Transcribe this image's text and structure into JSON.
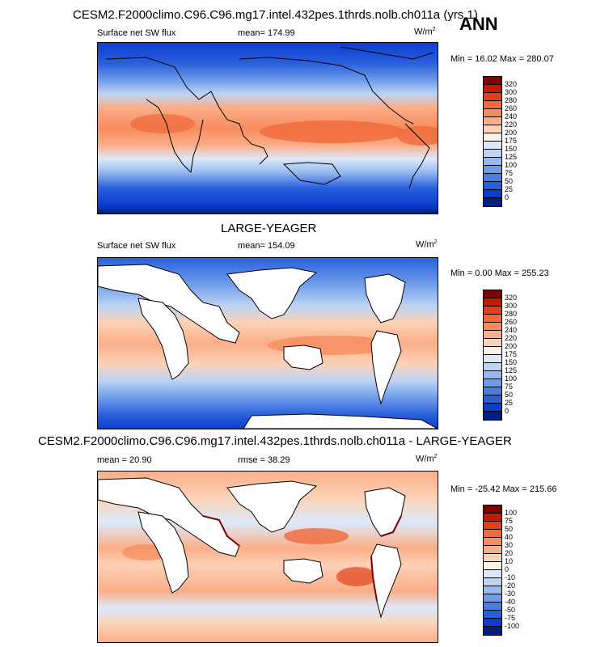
{
  "header": {
    "title": "CESM2.F2000climo.C96.C96.mg17.intel.432pes.1thrds.nolb.ch011a (yrs 1)",
    "season": "ANN"
  },
  "panels": [
    {
      "variable": "Surface net SW flux",
      "stat": "mean=  174.99",
      "units": "W/m",
      "units_sup": "2",
      "minmax": "Min =  16.02 Max = 280.07",
      "land_blank": false
    },
    {
      "subtitle": "LARGE-YEAGER",
      "variable": "Surface net SW flux",
      "stat": "mean=  154.09",
      "units": "W/m",
      "units_sup": "2",
      "minmax": "Min =  0.00 Max = 255.23",
      "land_blank": true
    },
    {
      "subtitle": "CESM2.F2000climo.C96.C96.mg17.intel.432pes.1thrds.nolb.ch011a - LARGE-YEAGER",
      "variable": "mean =  20.90",
      "stat": "rmse =  38.29",
      "units": "W/m",
      "units_sup": "2",
      "minmax": "Min = -25.42 Max = 215.66",
      "land_blank": true
    }
  ],
  "colorbars": {
    "abs_levels": [
      "320",
      "300",
      "280",
      "260",
      "240",
      "220",
      "200",
      "175",
      "150",
      "125",
      "100",
      "75",
      "50",
      "25",
      "0"
    ],
    "abs_colors": [
      "#800000",
      "#c01a00",
      "#e0411c",
      "#f06a3c",
      "#f78c5e",
      "#fbae88",
      "#fdd2b6",
      "#fdf0e4",
      "#dce9fa",
      "#bcd4f5",
      "#95b9f0",
      "#6e9cea",
      "#4a7de3",
      "#2a5fdc",
      "#0b3ed0",
      "#001e80"
    ],
    "diff_levels": [
      "100",
      "75",
      "50",
      "40",
      "30",
      "20",
      "10",
      "0",
      "-10",
      "-20",
      "-30",
      "-40",
      "-50",
      "-75",
      "-100"
    ],
    "diff_colors": [
      "#800000",
      "#c01a00",
      "#e0411c",
      "#f06a3c",
      "#f78c5e",
      "#fbae88",
      "#fdd2b6",
      "#fdf0e4",
      "#dce9fa",
      "#bcd4f5",
      "#95b9f0",
      "#6e9cea",
      "#4a7de3",
      "#2a5fdc",
      "#0b3ed0",
      "#001e80"
    ]
  }
}
